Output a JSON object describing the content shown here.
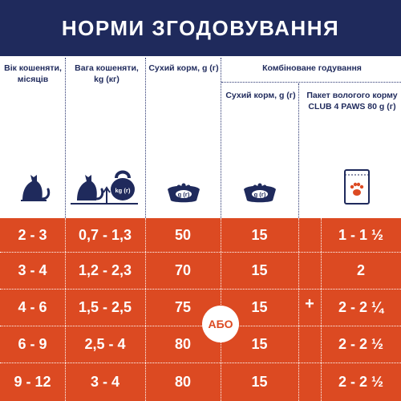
{
  "header": {
    "title": "НОРМИ ЗГОДОВУВАННЯ"
  },
  "columns": {
    "age": "Вік кошеняти, місяців",
    "weight": "Вага кошеняти, kg (кг)",
    "dry": "Сухий корм, g (г)",
    "combined": "Комбіноване годування",
    "combined_dry": "Сухий корм, g (г)",
    "combined_wet": "Пакет вологого корму CLUB 4 PAWS 80 g (г)"
  },
  "icons": {
    "kettlebell_label": "kg (г)",
    "bowl_label": "g (г)"
  },
  "rows": [
    {
      "age": "2 - 3",
      "weight": "0,7 - 1,3",
      "dry": "50",
      "combined_dry": "15",
      "wet": "1 - 1 ½"
    },
    {
      "age": "3 - 4",
      "weight": "1,2 - 2,3",
      "dry": "70",
      "combined_dry": "15",
      "wet": "2"
    },
    {
      "age": "4 - 6",
      "weight": "1,5 - 2,5",
      "dry": "75",
      "combined_dry": "15",
      "wet": "2 - 2 ¼"
    },
    {
      "age": "6 - 9",
      "weight": "2,5 - 4",
      "dry": "80",
      "combined_dry": "15",
      "wet": "2 - 2 ½"
    },
    {
      "age": "9 - 12",
      "weight": "3 - 4",
      "dry": "80",
      "combined_dry": "15",
      "wet": "2 - 2 ½"
    }
  ],
  "or_label": "АБО",
  "plus_label": "+",
  "colors": {
    "navy": "#1f2a5c",
    "orange": "#dc4a22",
    "white": "#ffffff"
  }
}
